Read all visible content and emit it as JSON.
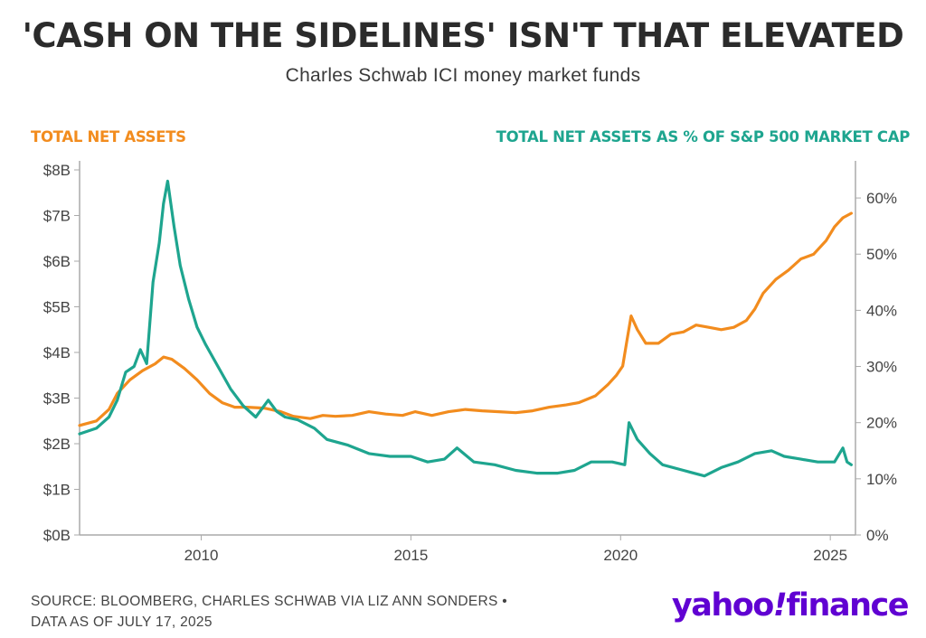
{
  "header": {
    "title": "'CASH ON THE SIDELINES' ISN'T THAT ELEVATED",
    "subtitle": "Charles Schwab ICI money market funds"
  },
  "legend": {
    "left_label": "TOTAL NET ASSETS",
    "right_label": "TOTAL NET ASSETS AS % OF S&P 500 MARKET CAP"
  },
  "footer": {
    "source_line1": "SOURCE: BLOOMBERG, CHARLES SCHWAB VIA LIZ ANN SONDERS •",
    "source_line2": "DATA AS OF JULY 17, 2025",
    "logo_part1": "yahoo",
    "logo_bang": "!",
    "logo_part2": "finance"
  },
  "colors": {
    "assets": "#f28c1e",
    "percent": "#1ea58f",
    "axis": "#aaaaaa"
  },
  "chart_data": {
    "type": "line",
    "title": "'CASH ON THE SIDELINES' ISN'T THAT ELEVATED",
    "subtitle": "Charles Schwab ICI money market funds",
    "xlim": [
      2007.1,
      2025.6
    ],
    "x_ticks": [
      2010,
      2015,
      2020,
      2025
    ],
    "x_tick_labels": [
      "2010",
      "2015",
      "2020",
      "2025"
    ],
    "y_left": {
      "label": "TOTAL NET ASSETS",
      "ylim": [
        0,
        8
      ],
      "ticks": [
        0,
        1,
        2,
        3,
        4,
        5,
        6,
        7,
        8
      ],
      "tick_labels": [
        "$0B",
        "$1B",
        "$2B",
        "$3B",
        "$4B",
        "$5B",
        "$6B",
        "$7B",
        "$8B"
      ]
    },
    "y_right": {
      "label": "TOTAL NET ASSETS AS % OF S&P 500 MARKET CAP",
      "ylim": [
        0,
        65
      ],
      "ticks": [
        0,
        10,
        20,
        30,
        40,
        50,
        60
      ],
      "tick_labels": [
        "0%",
        "10%",
        "20%",
        "30%",
        "40%",
        "50%",
        "60%"
      ]
    },
    "series": [
      {
        "name": "TOTAL NET ASSETS",
        "axis": "left",
        "x": [
          2007.1,
          2007.5,
          2007.8,
          2008.0,
          2008.3,
          2008.6,
          2008.9,
          2009.1,
          2009.3,
          2009.6,
          2009.9,
          2010.2,
          2010.5,
          2010.8,
          2011.1,
          2011.5,
          2011.9,
          2012.2,
          2012.6,
          2012.9,
          2013.2,
          2013.6,
          2014.0,
          2014.4,
          2014.8,
          2015.1,
          2015.5,
          2015.9,
          2016.3,
          2016.7,
          2017.1,
          2017.5,
          2017.9,
          2018.3,
          2018.7,
          2019.0,
          2019.4,
          2019.7,
          2019.9,
          2020.05,
          2020.15,
          2020.25,
          2020.4,
          2020.6,
          2020.9,
          2021.2,
          2021.5,
          2021.8,
          2022.1,
          2022.4,
          2022.7,
          2023.0,
          2023.2,
          2023.4,
          2023.7,
          2024.0,
          2024.3,
          2024.6,
          2024.9,
          2025.1,
          2025.3,
          2025.5
        ],
        "values": [
          2.4,
          2.5,
          2.75,
          3.1,
          3.4,
          3.6,
          3.75,
          3.9,
          3.85,
          3.65,
          3.4,
          3.1,
          2.9,
          2.8,
          2.8,
          2.78,
          2.7,
          2.6,
          2.55,
          2.62,
          2.6,
          2.62,
          2.7,
          2.65,
          2.62,
          2.7,
          2.62,
          2.7,
          2.75,
          2.72,
          2.7,
          2.68,
          2.72,
          2.8,
          2.85,
          2.9,
          3.05,
          3.3,
          3.5,
          3.7,
          4.25,
          4.8,
          4.5,
          4.2,
          4.2,
          4.4,
          4.45,
          4.6,
          4.55,
          4.5,
          4.55,
          4.7,
          4.95,
          5.3,
          5.6,
          5.8,
          6.05,
          6.15,
          6.45,
          6.75,
          6.95,
          7.05
        ]
      },
      {
        "name": "TOTAL NET ASSETS AS % OF S&P 500 MARKET CAP",
        "axis": "right",
        "x": [
          2007.1,
          2007.5,
          2007.8,
          2008.0,
          2008.2,
          2008.4,
          2008.55,
          2008.7,
          2008.85,
          2009.0,
          2009.1,
          2009.2,
          2009.35,
          2009.5,
          2009.7,
          2009.9,
          2010.1,
          2010.4,
          2010.7,
          2011.0,
          2011.3,
          2011.6,
          2011.8,
          2012.0,
          2012.3,
          2012.7,
          2013.0,
          2013.5,
          2014.0,
          2014.5,
          2015.0,
          2015.4,
          2015.8,
          2016.1,
          2016.5,
          2017.0,
          2017.5,
          2018.0,
          2018.5,
          2018.9,
          2019.3,
          2019.8,
          2020.1,
          2020.2,
          2020.4,
          2020.7,
          2021.0,
          2021.5,
          2022.0,
          2022.4,
          2022.8,
          2023.2,
          2023.6,
          2023.9,
          2024.3,
          2024.7,
          2025.1,
          2025.3,
          2025.4,
          2025.5
        ],
        "values": [
          18,
          19,
          21,
          24,
          29,
          30,
          33,
          30.5,
          45,
          52,
          59,
          63,
          55,
          48,
          42,
          37,
          34,
          30,
          26,
          23,
          21,
          24,
          22,
          21,
          20.5,
          19,
          17,
          16,
          14.5,
          14,
          14,
          13,
          13.5,
          15.5,
          13,
          12.5,
          11.5,
          11,
          11,
          11.5,
          13,
          13,
          12.5,
          20,
          17,
          14.5,
          12.5,
          11.5,
          10.5,
          12,
          13,
          14.5,
          15,
          14,
          13.5,
          13,
          13,
          15.5,
          13,
          12.5
        ]
      }
    ],
    "grid": false
  }
}
